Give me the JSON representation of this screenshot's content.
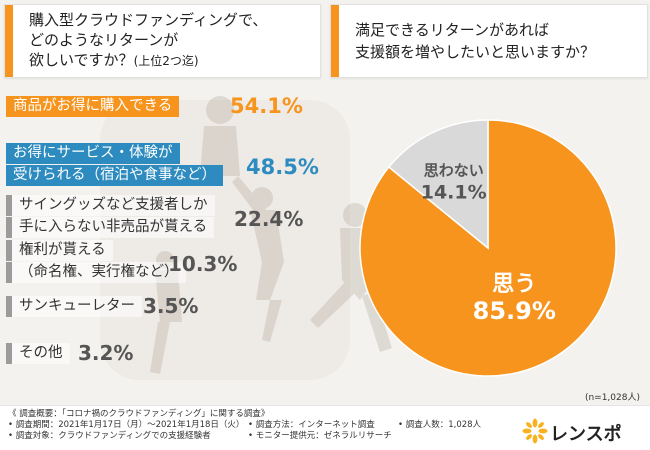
{
  "questions": {
    "left": {
      "line1": "購入型クラウドファンディングで、",
      "line2": "どのようなリターンが",
      "line3": "欲しいですか？",
      "note": "(上位2つ迄)"
    },
    "right": {
      "line1": "満足できるリターンがあれば",
      "line2": "支援額を増やしたいと思いますか？"
    }
  },
  "chart_data": [
    {
      "type": "bar",
      "categories": [
        "商品がお得に購入できる",
        "お得にサービス・体験が受けられる（宿泊や食事など）",
        "サイングッズなど支援者しか手に入らない非売品が貰える",
        "権利が貰える（命名権、実行権など）",
        "サンキューレター",
        "その他"
      ],
      "display_labels": [
        [
          "商品がお得に購入できる"
        ],
        [
          "お得にサービス・体験が",
          "受けられる（宿泊や食事など）"
        ],
        [
          "サイングッズなど支援者しか",
          "手に入らない非売品が貰える"
        ],
        [
          "権利が貰える",
          "（命名権、実行権など）"
        ],
        [
          "サンキューレター"
        ],
        [
          "その他"
        ]
      ],
      "values": [
        54.1,
        48.5,
        22.4,
        10.3,
        3.5,
        3.2
      ],
      "value_labels": [
        "54.1%",
        "48.5%",
        "22.4%",
        "10.3%",
        "3.5%",
        "3.2%"
      ],
      "title": ""
    },
    {
      "type": "pie",
      "categories": [
        "思う",
        "思わない"
      ],
      "values": [
        85.9,
        14.1
      ],
      "value_labels": [
        "85.9%",
        "14.1%"
      ],
      "colors": [
        "#f7941d",
        "#d9d9d9"
      ],
      "sample_size": "(n=1,028人)"
    }
  ],
  "footer": {
    "line1": "《 調査概要：「コロナ禍のクラウドファンディング」に関する調査》",
    "period": "• 調査期間：2021年1月17日（月）〜2021年1月18日（火）",
    "target": "• 調査対象：クラウドファンディングでの支援経験者",
    "method": "• 調査方法：インターネット調査",
    "provider": "• モニター提供元：ゼネラルリサーチ",
    "count": "• 調査人数：1,028人"
  },
  "brand": {
    "logo_text": "レンスポ",
    "accent": "#f7941d",
    "secondary": "#2e8bbf"
  }
}
